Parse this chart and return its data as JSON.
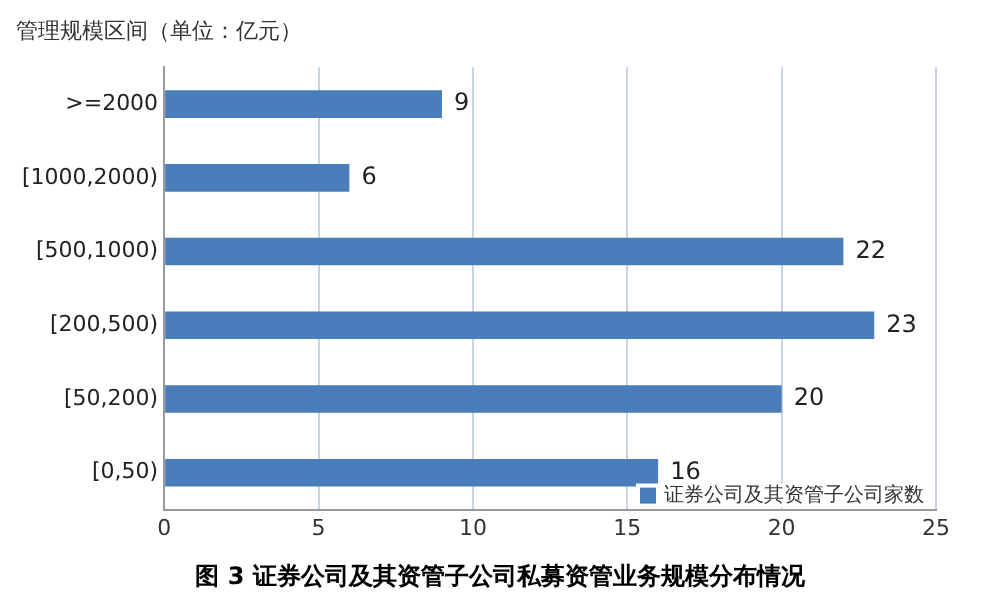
{
  "chart_data": {
    "type": "bar",
    "orientation": "horizontal",
    "title": "图 3  证券公司及其资管子公司私募资管业务规模分布情况",
    "ylabel": "管理规模区间（单位：亿元）",
    "categories": [
      ">=2000",
      "[1000,2000)",
      "[500,1000)",
      "[200,500)",
      "[50,200)",
      "[0,50)"
    ],
    "series": [
      {
        "name": "证券公司及其资管子公司家数",
        "color": "#4a7ebb",
        "values": [
          9,
          6,
          22,
          23,
          20,
          16
        ]
      }
    ],
    "xlim": [
      0,
      25
    ],
    "xticks": [
      0,
      5,
      10,
      15,
      20,
      25
    ],
    "grid": "x",
    "legend": "bottom right",
    "data_labels": true
  }
}
